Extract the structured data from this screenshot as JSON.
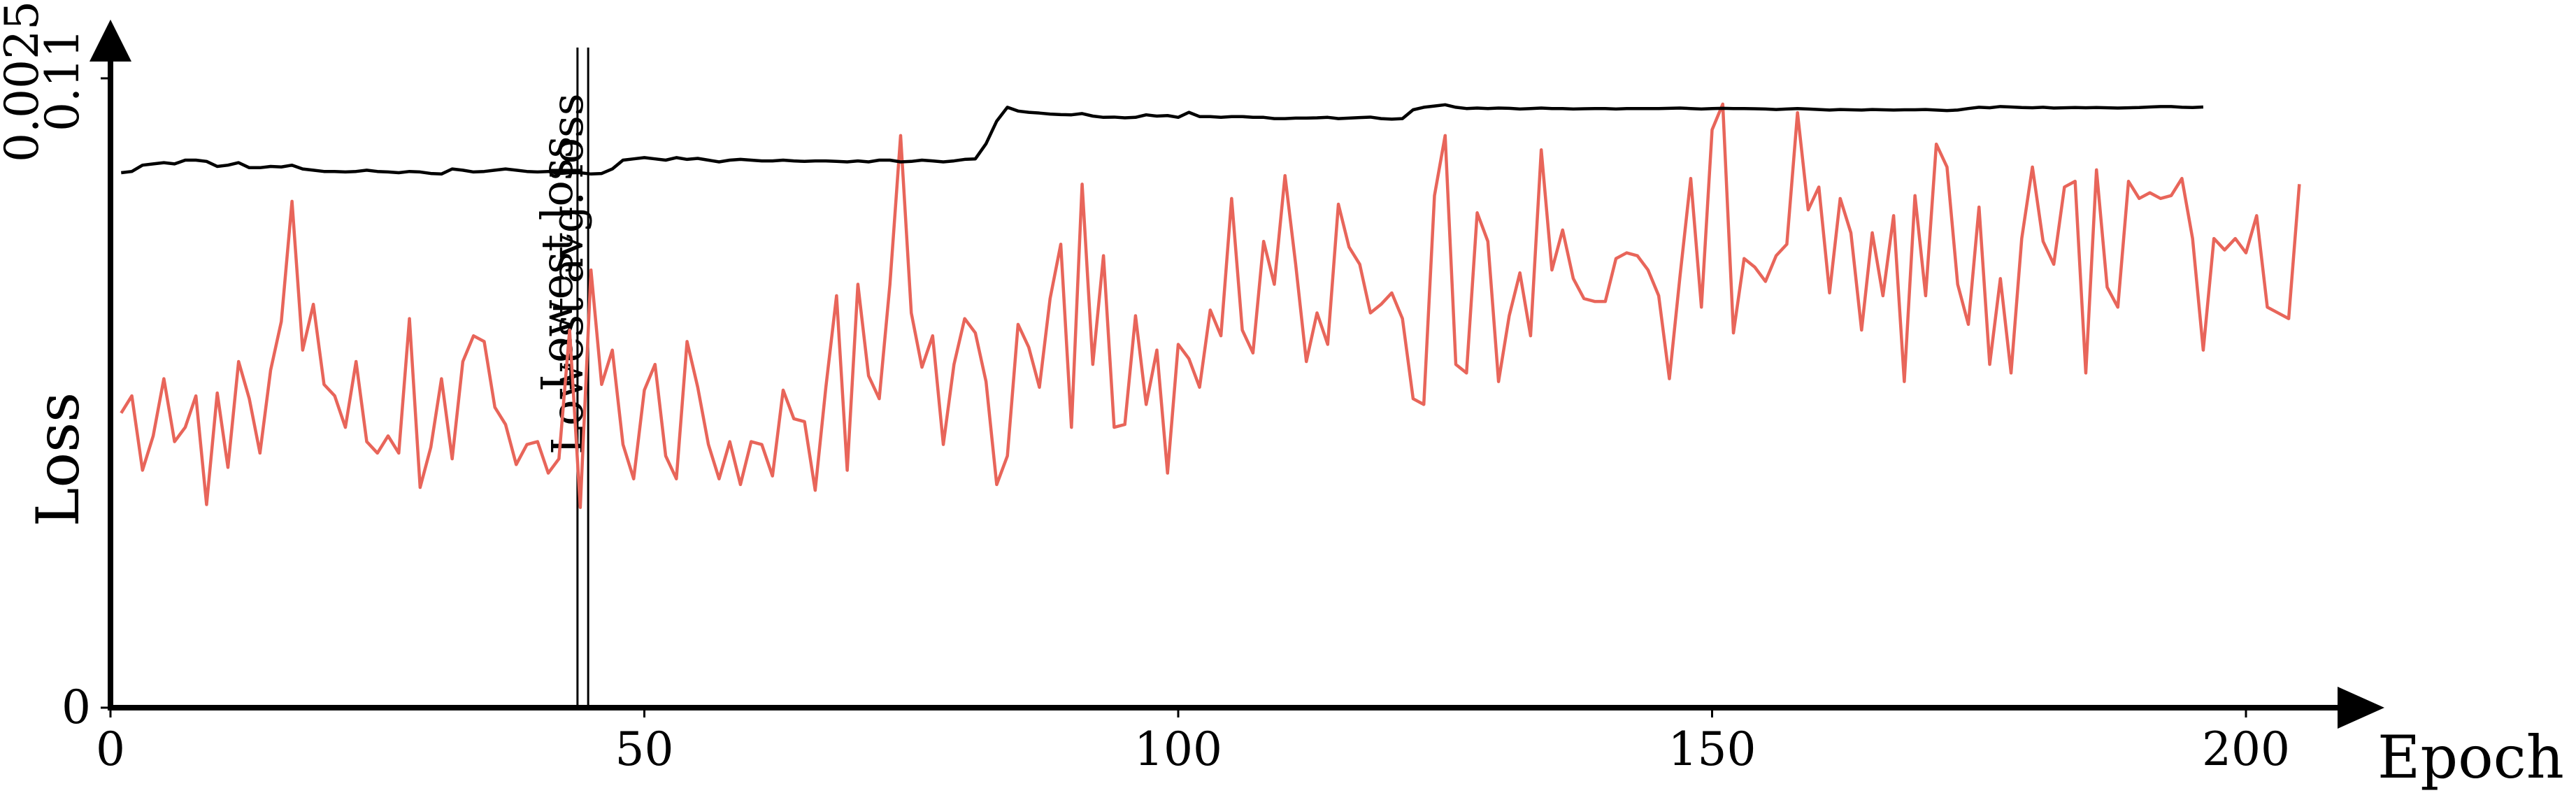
{
  "chart_data": {
    "type": "line",
    "xlabel": "Epoch",
    "ylabel": "Loss",
    "xlim": [
      0,
      210
    ],
    "x_ticks": [
      0,
      50,
      100,
      150,
      200
    ],
    "axes": [
      {
        "name": "left-black",
        "color": "#000000",
        "ylim": [
          0,
          0.0025
        ],
        "tick_top": "0.0025"
      },
      {
        "name": "left-red",
        "color": "#e8655a",
        "ylim": [
          0,
          0.11
        ],
        "tick_top": "0.11"
      }
    ],
    "y_tick_zero": "0",
    "markers": [
      {
        "x": 44,
        "label": "Lowest loss"
      },
      {
        "x": 45,
        "label": "Lowest avg. loss"
      }
    ],
    "series": [
      {
        "axis": "left-black",
        "color": "#000000",
        "x_start": 1,
        "values": [
          0.002125,
          0.00213,
          0.002155,
          0.00216,
          0.002165,
          0.00216,
          0.002175,
          0.002175,
          0.00217,
          0.00215,
          0.002155,
          0.002165,
          0.002145,
          0.002145,
          0.00215,
          0.002148,
          0.002155,
          0.00214,
          0.002135,
          0.00213,
          0.00213,
          0.002128,
          0.00213,
          0.002135,
          0.00213,
          0.002128,
          0.002125,
          0.00213,
          0.002128,
          0.002122,
          0.00212,
          0.00214,
          0.002135,
          0.002128,
          0.00213,
          0.002135,
          0.00214,
          0.002135,
          0.00213,
          0.002128,
          0.00213,
          0.002122,
          0.002125,
          0.002125,
          0.00212,
          0.002122,
          0.00214,
          0.002175,
          0.00218,
          0.002185,
          0.00218,
          0.002175,
          0.002185,
          0.002178,
          0.002182,
          0.002175,
          0.002168,
          0.002175,
          0.002178,
          0.002175,
          0.002172,
          0.002172,
          0.002175,
          0.002172,
          0.00217,
          0.002172,
          0.002172,
          0.00217,
          0.002168,
          0.002172,
          0.002168,
          0.002175,
          0.002175,
          0.002168,
          0.00217,
          0.002175,
          0.002172,
          0.002168,
          0.002172,
          0.002178,
          0.00218,
          0.00224,
          0.00233,
          0.002385,
          0.00237,
          0.002365,
          0.002362,
          0.002358,
          0.002356,
          0.002355,
          0.00236,
          0.00235,
          0.002345,
          0.002346,
          0.002343,
          0.002345,
          0.002355,
          0.00235,
          0.002352,
          0.002345,
          0.002365,
          0.002348,
          0.002348,
          0.002345,
          0.002348,
          0.002348,
          0.002345,
          0.002345,
          0.00234,
          0.00234,
          0.002342,
          0.002342,
          0.002343,
          0.002345,
          0.00234,
          0.002342,
          0.002344,
          0.002346,
          0.00234,
          0.002338,
          0.00234,
          0.002375,
          0.002385,
          0.00239,
          0.002395,
          0.002385,
          0.00238,
          0.002382,
          0.00238,
          0.002382,
          0.002381,
          0.002378,
          0.00238,
          0.002382,
          0.00238,
          0.00238,
          0.002378,
          0.002379,
          0.00238,
          0.00238,
          0.002378,
          0.00238,
          0.00238,
          0.00238,
          0.00238,
          0.002381,
          0.002382,
          0.00238,
          0.002378,
          0.00238,
          0.002381,
          0.00238,
          0.00238,
          0.002379,
          0.002378,
          0.002376,
          0.002378,
          0.00238,
          0.002378,
          0.002376,
          0.002374,
          0.002376,
          0.002375,
          0.002374,
          0.002376,
          0.002375,
          0.002374,
          0.002375,
          0.002375,
          0.002376,
          0.002374,
          0.002372,
          0.002374,
          0.00238,
          0.002385,
          0.002383,
          0.002388,
          0.002386,
          0.002384,
          0.002383,
          0.002385,
          0.002382,
          0.002383,
          0.002384,
          0.002383,
          0.002384,
          0.002383,
          0.002382,
          0.002383,
          0.002384,
          0.002386,
          0.002388,
          0.002388,
          0.002385,
          0.002384,
          0.002386
        ]
      },
      {
        "axis": "left-red",
        "color": "#e8655a",
        "x_start": 1,
        "values": [
          0.0515,
          0.0545,
          0.0415,
          0.0475,
          0.0575,
          0.0465,
          0.049,
          0.0545,
          0.0355,
          0.055,
          0.042,
          0.0605,
          0.054,
          0.0445,
          0.059,
          0.0675,
          0.0885,
          0.0625,
          0.0705,
          0.0565,
          0.0545,
          0.049,
          0.0605,
          0.0465,
          0.0445,
          0.0475,
          0.0445,
          0.068,
          0.0385,
          0.0455,
          0.0575,
          0.0435,
          0.0605,
          0.065,
          0.064,
          0.0525,
          0.0495,
          0.0425,
          0.046,
          0.0465,
          0.041,
          0.0435,
          0.066,
          0.035,
          0.0765,
          0.0565,
          0.0625,
          0.046,
          0.04,
          0.0555,
          0.06,
          0.044,
          0.04,
          0.064,
          0.056,
          0.046,
          0.04,
          0.0465,
          0.039,
          0.0465,
          0.046,
          0.0405,
          0.0555,
          0.0505,
          0.05,
          0.038,
          0.056,
          0.072,
          0.0415,
          0.074,
          0.058,
          0.054,
          0.074,
          0.1,
          0.069,
          0.0595,
          0.065,
          0.046,
          0.06,
          0.068,
          0.0655,
          0.057,
          0.039,
          0.044,
          0.067,
          0.063,
          0.056,
          0.0715,
          0.081,
          0.049,
          0.0915,
          0.06,
          0.079,
          0.049,
          0.0495,
          0.0685,
          0.053,
          0.0625,
          0.041,
          0.0635,
          0.061,
          0.056,
          0.0695,
          0.065,
          0.089,
          0.066,
          0.062,
          0.0815,
          0.074,
          0.093,
          0.0775,
          0.0605,
          0.069,
          0.0635,
          0.088,
          0.0805,
          0.0775,
          0.069,
          0.0705,
          0.0725,
          0.068,
          0.054,
          0.053,
          0.0895,
          0.1,
          0.06,
          0.0585,
          0.0865,
          0.0815,
          0.057,
          0.0685,
          0.076,
          0.065,
          0.0975,
          0.0765,
          0.0835,
          0.075,
          0.0715,
          0.071,
          0.071,
          0.0785,
          0.0795,
          0.079,
          0.0765,
          0.072,
          0.0575,
          0.0755,
          0.0925,
          0.07,
          0.101,
          0.1055,
          0.0655,
          0.0785,
          0.077,
          0.0745,
          0.079,
          0.081,
          0.104,
          0.087,
          0.091,
          0.0725,
          0.089,
          0.083,
          0.066,
          0.083,
          0.072,
          0.086,
          0.057,
          0.0895,
          0.072,
          0.0985,
          0.0945,
          0.074,
          0.067,
          0.0875,
          0.06,
          0.075,
          0.0585,
          0.082,
          0.0945,
          0.0815,
          0.0775,
          0.091,
          0.092,
          0.0585,
          0.094,
          0.0735,
          0.07,
          0.092,
          0.089,
          0.09,
          0.089,
          0.0895,
          0.0925,
          0.082,
          0.0625,
          0.082,
          0.08,
          0.082,
          0.0795,
          0.086,
          0.07,
          0.069,
          0.068,
          0.0915
        ]
      }
    ]
  }
}
